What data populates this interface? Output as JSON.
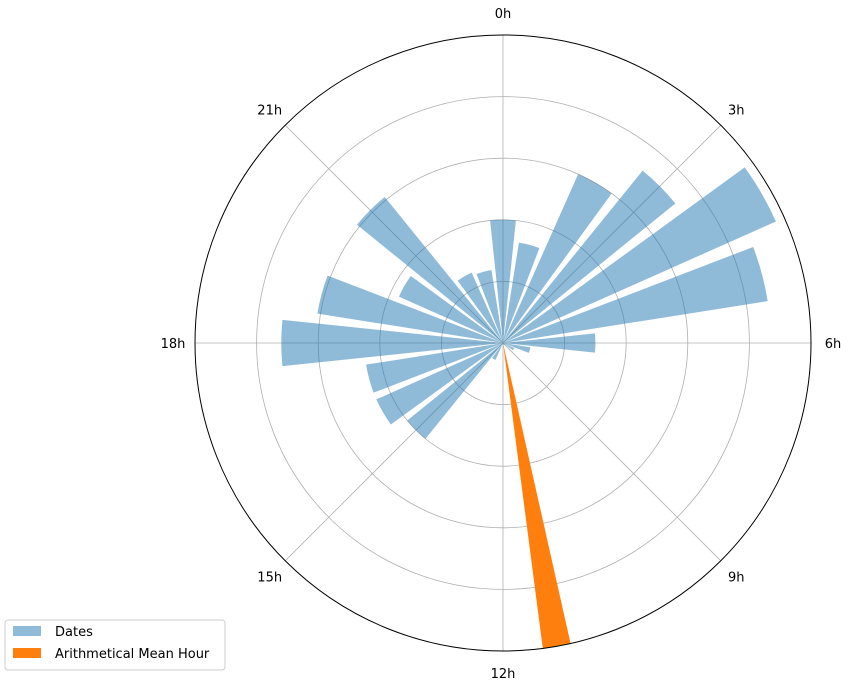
{
  "chart_data": {
    "type": "polar-bar",
    "title": "",
    "theta_direction": "clockwise",
    "theta_zero": "top",
    "theta_unit": "hour",
    "theta_ticks": [
      {
        "hour": 0,
        "label": "0h"
      },
      {
        "hour": 3,
        "label": "3h"
      },
      {
        "hour": 6,
        "label": "6h"
      },
      {
        "hour": 9,
        "label": "9h"
      },
      {
        "hour": 12,
        "label": "12h"
      },
      {
        "hour": 15,
        "label": "15h"
      },
      {
        "hour": 18,
        "label": "18h"
      },
      {
        "hour": 21,
        "label": "21h"
      }
    ],
    "r_max": 5,
    "r_grid": [
      1,
      2,
      3,
      4
    ],
    "r_tick_labels_shown": false,
    "grid": true,
    "legend_position": "lower-left",
    "series": [
      {
        "name": "Dates",
        "color": "#1f77b4",
        "alpha": 0.5,
        "bin_width_hours": 0.8,
        "hours": [
          0,
          1,
          2,
          3,
          4,
          5,
          6,
          7,
          8,
          9,
          10,
          11,
          12,
          13,
          14,
          15,
          16,
          17,
          18,
          19,
          20,
          21,
          22,
          23
        ],
        "values": [
          2.0,
          1.65,
          3.0,
          3.6,
          4.85,
          4.35,
          1.5,
          0.45,
          0.2,
          0.05,
          0.03,
          0.03,
          0.02,
          0.03,
          0.3,
          2.0,
          2.25,
          2.25,
          3.6,
          3.05,
          1.85,
          3.05,
          1.25,
          1.2
        ]
      },
      {
        "name": "Arithmetical Mean Hour",
        "color": "#ff7f0e",
        "alpha": 1.0,
        "bin_width_hours": 0.35,
        "hours": [
          11.33
        ],
        "values": [
          5.0
        ]
      }
    ]
  }
}
